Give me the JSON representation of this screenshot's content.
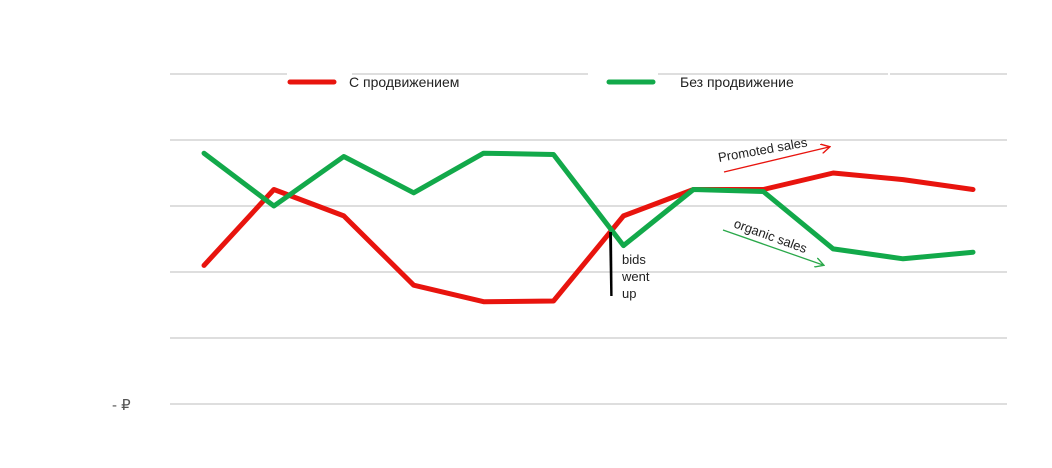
{
  "chart_data": {
    "type": "line",
    "title": "",
    "xlabel": "",
    "ylabel": "",
    "y_tick_labels": [
      "-  ₽"
    ],
    "grid": true,
    "legend": "top-center",
    "x": [
      1,
      2,
      3,
      4,
      5,
      6,
      7,
      8,
      9,
      10,
      11,
      12
    ],
    "ylim": [
      0,
      5
    ],
    "series": [
      {
        "name": "С продвижением",
        "color": "#e8140e",
        "values": [
          2.1,
          3.25,
          2.85,
          1.8,
          1.55,
          1.56,
          2.85,
          3.25,
          3.25,
          3.5,
          3.4,
          3.25
        ]
      },
      {
        "name": "Без продвижение",
        "color": "#12a94a",
        "values": [
          3.8,
          3.0,
          3.75,
          3.2,
          3.8,
          3.78,
          2.4,
          3.25,
          3.22,
          2.35,
          2.2,
          2.3
        ]
      }
    ],
    "annotations": [
      {
        "text": "Promoted sales",
        "color": "#e8140e"
      },
      {
        "text": "organic sales",
        "color": "#2aa84a"
      },
      {
        "text_lines": [
          "bids",
          "went",
          "up"
        ],
        "color": "#000000"
      }
    ]
  }
}
